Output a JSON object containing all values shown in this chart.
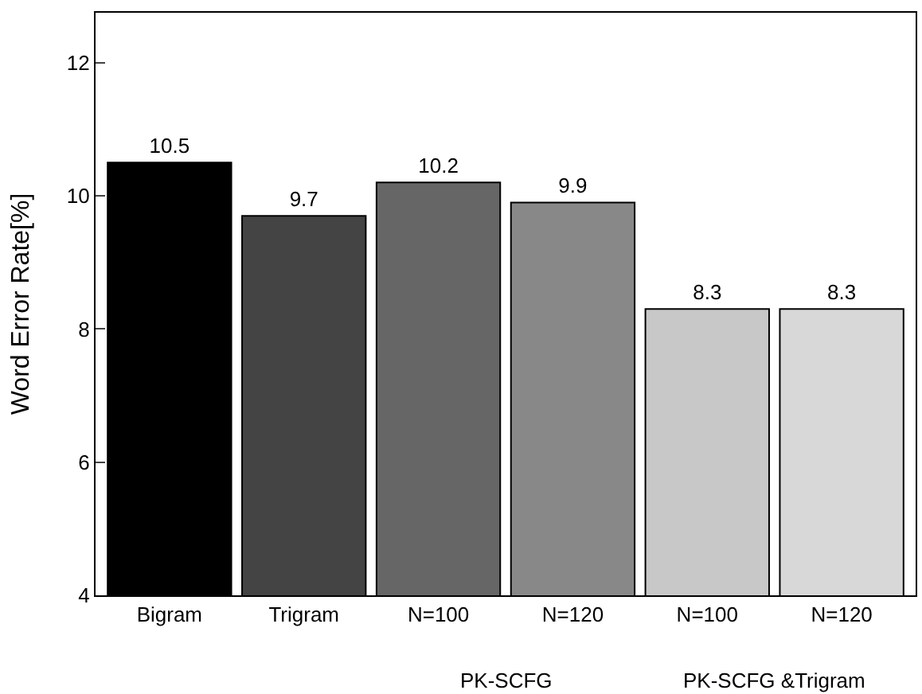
{
  "chart_data": {
    "type": "bar",
    "ylabel": "Word Error Rate[%]",
    "categories": [
      "Bigram",
      "Trigram",
      "N=100",
      "N=120",
      "N=100",
      "N=120"
    ],
    "values": [
      10.5,
      9.7,
      10.2,
      9.9,
      8.3,
      8.3
    ],
    "colors": [
      "#000000",
      "#444444",
      "#666666",
      "#888888",
      "#c8c8c8",
      "#d8d8d8"
    ],
    "ylim": [
      4,
      12.75
    ],
    "yticks": [
      4,
      6,
      8,
      10,
      12
    ],
    "grid": false,
    "data_labels": true,
    "annotations": [
      "PK-SCFG",
      "PK-SCFG &Trigram"
    ]
  }
}
